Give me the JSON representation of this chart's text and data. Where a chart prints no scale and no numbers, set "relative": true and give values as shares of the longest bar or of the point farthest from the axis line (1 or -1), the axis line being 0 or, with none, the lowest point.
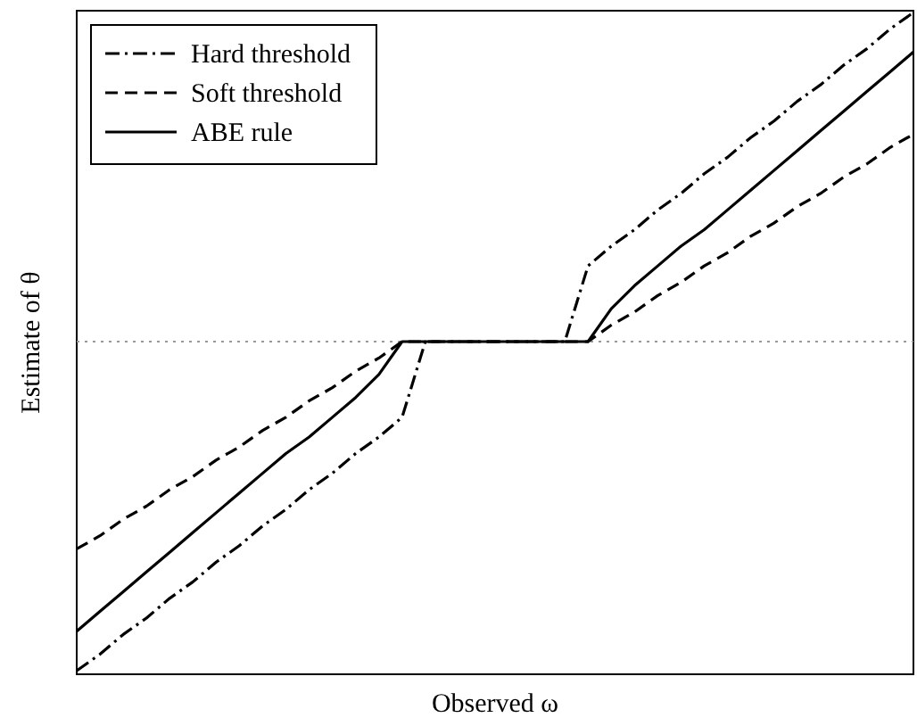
{
  "chart_data": {
    "type": "line",
    "relative": true,
    "xlabel": "Observed ω",
    "ylabel": "Estimate of θ",
    "legend": "top left",
    "categories": [
      null,
      null,
      null,
      null,
      null,
      null,
      null,
      null,
      null,
      null,
      null,
      null,
      null,
      null,
      null,
      null,
      null,
      null,
      null,
      null,
      null,
      null,
      null,
      null,
      null,
      null,
      null,
      null,
      null,
      null,
      null,
      null,
      null,
      null,
      null,
      null,
      null
    ],
    "ref_lines": [
      {
        "axis": "y",
        "value": 0,
        "line_style": "dotted",
        "color": "#999999"
      }
    ],
    "series": [
      {
        "name": "Hard threshold",
        "color": "#000000",
        "line_style": "dashdot",
        "values": [
          -1.0,
          -0.95,
          -0.89,
          -0.84,
          -0.78,
          -0.73,
          -0.67,
          -0.62,
          -0.56,
          -0.51,
          -0.45,
          -0.4,
          -0.34,
          -0.29,
          -0.23,
          0,
          0,
          0,
          0,
          0,
          0,
          0,
          0.23,
          0.29,
          0.34,
          0.4,
          0.45,
          0.51,
          0.56,
          0.62,
          0.67,
          0.73,
          0.78,
          0.84,
          0.89,
          0.95,
          1.0
        ]
      },
      {
        "name": "Soft threshold",
        "color": "#000000",
        "line_style": "dashed",
        "values": [
          -0.63,
          -0.59,
          -0.54,
          -0.5,
          -0.45,
          -0.41,
          -0.36,
          -0.32,
          -0.27,
          -0.23,
          -0.18,
          -0.14,
          -0.09,
          -0.05,
          0,
          0,
          0,
          0,
          0,
          0,
          0,
          0,
          0,
          0.05,
          0.09,
          0.14,
          0.18,
          0.23,
          0.27,
          0.32,
          0.36,
          0.41,
          0.45,
          0.5,
          0.54,
          0.59,
          0.63
        ]
      },
      {
        "name": "ABE rule",
        "color": "#000000",
        "line_style": "solid",
        "values": [
          -0.88,
          -0.82,
          -0.76,
          -0.7,
          -0.64,
          -0.58,
          -0.52,
          -0.46,
          -0.4,
          -0.34,
          -0.29,
          -0.23,
          -0.17,
          -0.1,
          0,
          0,
          0,
          0,
          0,
          0,
          0,
          0,
          0,
          0.1,
          0.17,
          0.23,
          0.29,
          0.34,
          0.4,
          0.46,
          0.52,
          0.58,
          0.64,
          0.7,
          0.76,
          0.82,
          0.88
        ]
      }
    ]
  }
}
